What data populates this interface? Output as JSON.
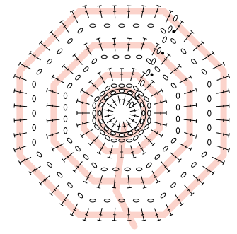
{
  "diagram": {
    "kind": "crochet-stitch-chart",
    "description_visible_text": "",
    "colors": {
      "background": "#ffffff",
      "highlight_band": "#fbd3cb",
      "ink": "#000000"
    },
    "center_ring": {
      "ring_stitches": 16,
      "inner_spokes": 16,
      "symbol": "single-crochet"
    },
    "rounds": [
      {
        "round": 1,
        "sides": 8,
        "stitch": "chain-loop",
        "stitches_per_side": 3
      },
      {
        "round": 2,
        "sides": 8,
        "stitch": "double-crochet",
        "stitches_per_side": 3
      },
      {
        "round": 3,
        "sides": 8,
        "stitch": "chain-loop",
        "stitches_per_side": 4
      },
      {
        "round": 4,
        "sides": 8,
        "stitch": "double-crochet",
        "stitches_per_side": 4
      },
      {
        "round": 5,
        "sides": 8,
        "stitch": "chain-loop",
        "stitches_per_side": 5
      },
      {
        "round": 6,
        "sides": 8,
        "stitch": "double-crochet",
        "stitches_per_side": 6
      }
    ],
    "joining_chain": {
      "chain_links": 9,
      "slip_stitch_dots": 3
    }
  }
}
